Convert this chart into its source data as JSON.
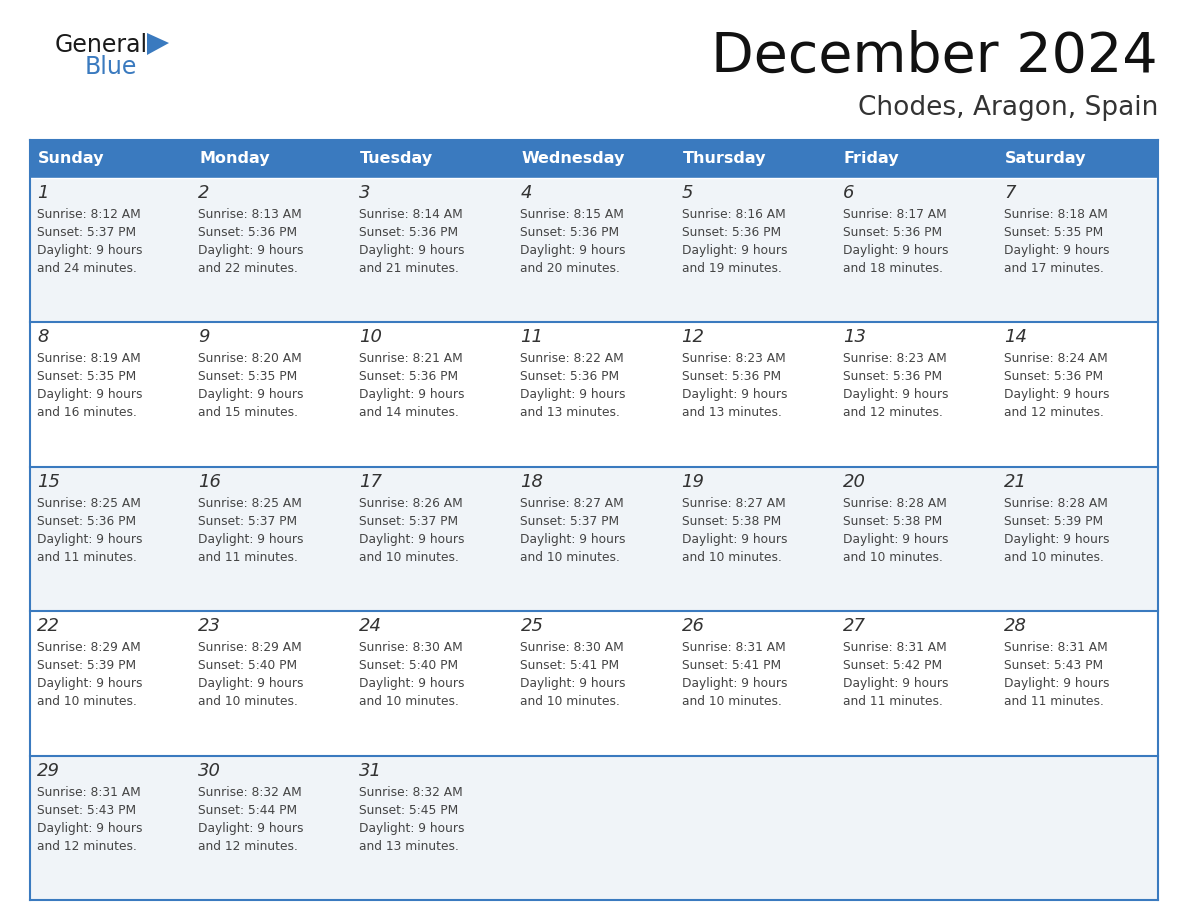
{
  "title": "December 2024",
  "subtitle": "Chodes, Aragon, Spain",
  "days_of_week": [
    "Sunday",
    "Monday",
    "Tuesday",
    "Wednesday",
    "Thursday",
    "Friday",
    "Saturday"
  ],
  "header_bg_color": "#3a7abf",
  "header_text_color": "#ffffff",
  "row_bg_colors": [
    "#f0f4f8",
    "#ffffff"
  ],
  "border_color": "#3a7abf",
  "separator_color": "#3a7abf",
  "text_color": "#444444",
  "day_number_color": "#333333",
  "calendar_data": [
    {
      "day": 1,
      "col": 0,
      "row": 0,
      "sunrise": "8:12 AM",
      "sunset": "5:37 PM",
      "daylight_hours": 9,
      "daylight_minutes": 24
    },
    {
      "day": 2,
      "col": 1,
      "row": 0,
      "sunrise": "8:13 AM",
      "sunset": "5:36 PM",
      "daylight_hours": 9,
      "daylight_minutes": 22
    },
    {
      "day": 3,
      "col": 2,
      "row": 0,
      "sunrise": "8:14 AM",
      "sunset": "5:36 PM",
      "daylight_hours": 9,
      "daylight_minutes": 21
    },
    {
      "day": 4,
      "col": 3,
      "row": 0,
      "sunrise": "8:15 AM",
      "sunset": "5:36 PM",
      "daylight_hours": 9,
      "daylight_minutes": 20
    },
    {
      "day": 5,
      "col": 4,
      "row": 0,
      "sunrise": "8:16 AM",
      "sunset": "5:36 PM",
      "daylight_hours": 9,
      "daylight_minutes": 19
    },
    {
      "day": 6,
      "col": 5,
      "row": 0,
      "sunrise": "8:17 AM",
      "sunset": "5:36 PM",
      "daylight_hours": 9,
      "daylight_minutes": 18
    },
    {
      "day": 7,
      "col": 6,
      "row": 0,
      "sunrise": "8:18 AM",
      "sunset": "5:35 PM",
      "daylight_hours": 9,
      "daylight_minutes": 17
    },
    {
      "day": 8,
      "col": 0,
      "row": 1,
      "sunrise": "8:19 AM",
      "sunset": "5:35 PM",
      "daylight_hours": 9,
      "daylight_minutes": 16
    },
    {
      "day": 9,
      "col": 1,
      "row": 1,
      "sunrise": "8:20 AM",
      "sunset": "5:35 PM",
      "daylight_hours": 9,
      "daylight_minutes": 15
    },
    {
      "day": 10,
      "col": 2,
      "row": 1,
      "sunrise": "8:21 AM",
      "sunset": "5:36 PM",
      "daylight_hours": 9,
      "daylight_minutes": 14
    },
    {
      "day": 11,
      "col": 3,
      "row": 1,
      "sunrise": "8:22 AM",
      "sunset": "5:36 PM",
      "daylight_hours": 9,
      "daylight_minutes": 13
    },
    {
      "day": 12,
      "col": 4,
      "row": 1,
      "sunrise": "8:23 AM",
      "sunset": "5:36 PM",
      "daylight_hours": 9,
      "daylight_minutes": 13
    },
    {
      "day": 13,
      "col": 5,
      "row": 1,
      "sunrise": "8:23 AM",
      "sunset": "5:36 PM",
      "daylight_hours": 9,
      "daylight_minutes": 12
    },
    {
      "day": 14,
      "col": 6,
      "row": 1,
      "sunrise": "8:24 AM",
      "sunset": "5:36 PM",
      "daylight_hours": 9,
      "daylight_minutes": 12
    },
    {
      "day": 15,
      "col": 0,
      "row": 2,
      "sunrise": "8:25 AM",
      "sunset": "5:36 PM",
      "daylight_hours": 9,
      "daylight_minutes": 11
    },
    {
      "day": 16,
      "col": 1,
      "row": 2,
      "sunrise": "8:25 AM",
      "sunset": "5:37 PM",
      "daylight_hours": 9,
      "daylight_minutes": 11
    },
    {
      "day": 17,
      "col": 2,
      "row": 2,
      "sunrise": "8:26 AM",
      "sunset": "5:37 PM",
      "daylight_hours": 9,
      "daylight_minutes": 10
    },
    {
      "day": 18,
      "col": 3,
      "row": 2,
      "sunrise": "8:27 AM",
      "sunset": "5:37 PM",
      "daylight_hours": 9,
      "daylight_minutes": 10
    },
    {
      "day": 19,
      "col": 4,
      "row": 2,
      "sunrise": "8:27 AM",
      "sunset": "5:38 PM",
      "daylight_hours": 9,
      "daylight_minutes": 10
    },
    {
      "day": 20,
      "col": 5,
      "row": 2,
      "sunrise": "8:28 AM",
      "sunset": "5:38 PM",
      "daylight_hours": 9,
      "daylight_minutes": 10
    },
    {
      "day": 21,
      "col": 6,
      "row": 2,
      "sunrise": "8:28 AM",
      "sunset": "5:39 PM",
      "daylight_hours": 9,
      "daylight_minutes": 10
    },
    {
      "day": 22,
      "col": 0,
      "row": 3,
      "sunrise": "8:29 AM",
      "sunset": "5:39 PM",
      "daylight_hours": 9,
      "daylight_minutes": 10
    },
    {
      "day": 23,
      "col": 1,
      "row": 3,
      "sunrise": "8:29 AM",
      "sunset": "5:40 PM",
      "daylight_hours": 9,
      "daylight_minutes": 10
    },
    {
      "day": 24,
      "col": 2,
      "row": 3,
      "sunrise": "8:30 AM",
      "sunset": "5:40 PM",
      "daylight_hours": 9,
      "daylight_minutes": 10
    },
    {
      "day": 25,
      "col": 3,
      "row": 3,
      "sunrise": "8:30 AM",
      "sunset": "5:41 PM",
      "daylight_hours": 9,
      "daylight_minutes": 10
    },
    {
      "day": 26,
      "col": 4,
      "row": 3,
      "sunrise": "8:31 AM",
      "sunset": "5:41 PM",
      "daylight_hours": 9,
      "daylight_minutes": 10
    },
    {
      "day": 27,
      "col": 5,
      "row": 3,
      "sunrise": "8:31 AM",
      "sunset": "5:42 PM",
      "daylight_hours": 9,
      "daylight_minutes": 11
    },
    {
      "day": 28,
      "col": 6,
      "row": 3,
      "sunrise": "8:31 AM",
      "sunset": "5:43 PM",
      "daylight_hours": 9,
      "daylight_minutes": 11
    },
    {
      "day": 29,
      "col": 0,
      "row": 4,
      "sunrise": "8:31 AM",
      "sunset": "5:43 PM",
      "daylight_hours": 9,
      "daylight_minutes": 12
    },
    {
      "day": 30,
      "col": 1,
      "row": 4,
      "sunrise": "8:32 AM",
      "sunset": "5:44 PM",
      "daylight_hours": 9,
      "daylight_minutes": 12
    },
    {
      "day": 31,
      "col": 2,
      "row": 4,
      "sunrise": "8:32 AM",
      "sunset": "5:45 PM",
      "daylight_hours": 9,
      "daylight_minutes": 13
    }
  ],
  "num_rows": 5,
  "num_cols": 7
}
